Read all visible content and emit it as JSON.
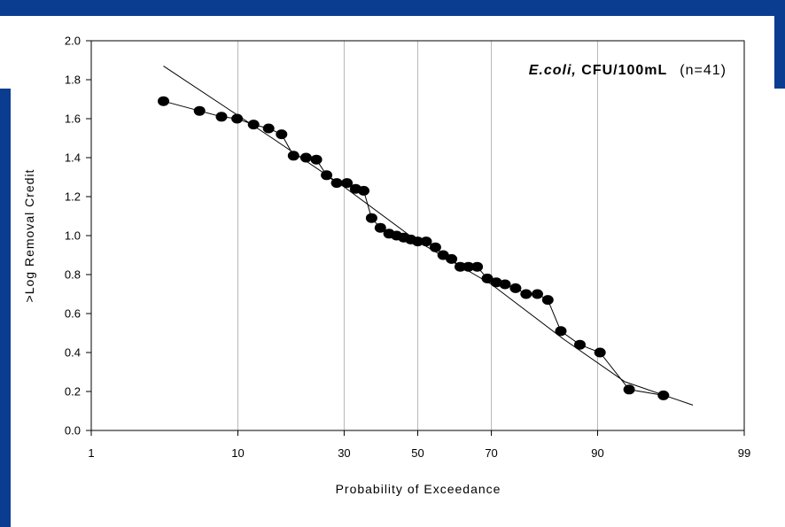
{
  "chart_data": {
    "type": "line",
    "title_italic": "E.coli,",
    "title_bold": " CFU/100mL",
    "title_count": "(n=41)",
    "xlabel": "Probability of Exceedance",
    "ylabel": ">Log Removal Credit",
    "x_scale": "normal-probability",
    "xlim": [
      1,
      99
    ],
    "ylim": [
      0,
      2.0
    ],
    "grid": "vertical at x ticks",
    "x_ticks": [
      1,
      10,
      30,
      50,
      70,
      90,
      99
    ],
    "x_tick_labels": [
      "1",
      "10",
      "30",
      "50",
      "70",
      "90",
      "99"
    ],
    "y_ticks": [
      0,
      0.2,
      0.4,
      0.6,
      0.8,
      1.0,
      1.2,
      1.4,
      1.6,
      1.8,
      2.0
    ],
    "y_tick_labels": [
      "0.0",
      "0.2",
      "0.4",
      "0.6",
      "0.8",
      "1.0",
      "1.2",
      "1.4",
      "1.6",
      "1.8",
      "2.0"
    ],
    "series": [
      {
        "marker": "filled-circle",
        "color": "#000000",
        "x": [
          3.5,
          6.0,
          8.1,
          9.9,
          12.1,
          14.4,
          16.6,
          18.8,
          21.3,
          23.5,
          25.8,
          28.2,
          30.7,
          32.9,
          35.0,
          37.1,
          39.5,
          41.9,
          44.0,
          46.0,
          48.0,
          50.0,
          52.4,
          55.0,
          57.2,
          59.5,
          61.9,
          64.1,
          66.4,
          69.0,
          71.2,
          73.3,
          75.7,
          78.0,
          80.3,
          82.3,
          84.6,
          87.6,
          90.3,
          93.4,
          96.0
        ],
        "y": [
          1.69,
          1.64,
          1.61,
          1.6,
          1.57,
          1.55,
          1.52,
          1.41,
          1.4,
          1.39,
          1.31,
          1.27,
          1.27,
          1.24,
          1.23,
          1.09,
          1.04,
          1.01,
          1.0,
          0.99,
          0.98,
          0.97,
          0.97,
          0.94,
          0.9,
          0.88,
          0.84,
          0.84,
          0.84,
          0.78,
          0.76,
          0.75,
          0.73,
          0.7,
          0.7,
          0.67,
          0.51,
          0.44,
          0.4,
          0.21,
          0.18
        ]
      }
    ],
    "fit_line": {
      "color": "#000000",
      "x": [
        3.5,
        15,
        30,
        50,
        70,
        85,
        93,
        97.5
      ],
      "y": [
        1.87,
        1.5,
        1.25,
        0.97,
        0.75,
        0.47,
        0.25,
        0.13
      ]
    }
  }
}
